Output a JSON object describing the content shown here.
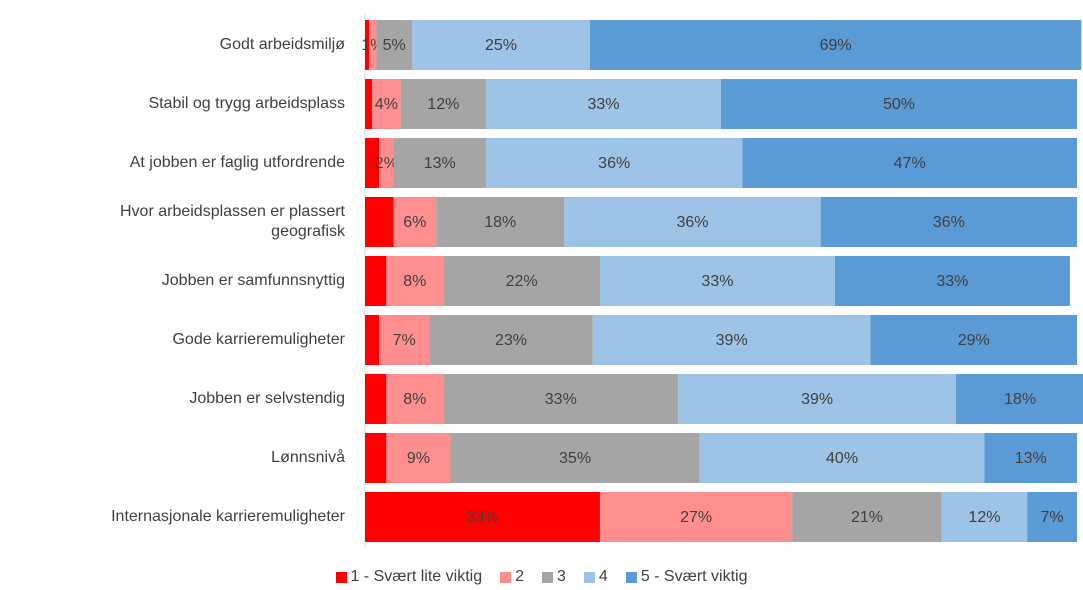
{
  "chart_data": {
    "type": "stacked-bar-horizontal",
    "categories": [
      "Godt arbeidsmiljø",
      "Stabil og trygg arbeidsplass",
      "At jobben er faglig utfordrende",
      "Hvor arbeidsplassen er plassert geografisk",
      "Jobben er samfunnsnyttig",
      "Gode karrieremuligheter",
      "Jobben er selvstendig",
      "Lønnsnivå",
      "Internasjonale karrieremuligheter"
    ],
    "series": [
      {
        "name": "1 - Svært lite viktig",
        "color": "#ff0000",
        "values": [
          0.6,
          1,
          2,
          4,
          3,
          2,
          3,
          3,
          33
        ],
        "value_labels": [
          null,
          null,
          null,
          null,
          null,
          null,
          null,
          null,
          "33%"
        ]
      },
      {
        "name": "2",
        "color": "#ff8f8f",
        "values": [
          1,
          4,
          2,
          6,
          8,
          7,
          8,
          9,
          27
        ],
        "value_labels": [
          "1%",
          "4%",
          "2%",
          "6%",
          "8%",
          "7%",
          "8%",
          "9%",
          "27%"
        ]
      },
      {
        "name": "3",
        "color": "#a5a5a5",
        "values": [
          5,
          12,
          13,
          18,
          22,
          23,
          33,
          35,
          21
        ],
        "value_labels": [
          "5%",
          "12%",
          "13%",
          "18%",
          "22%",
          "23%",
          "33%",
          "35%",
          "21%"
        ]
      },
      {
        "name": "4",
        "color": "#9dc3e6",
        "values": [
          25,
          33,
          36,
          36,
          33,
          39,
          39,
          40,
          12
        ],
        "value_labels": [
          "25%",
          "33%",
          "36%",
          "36%",
          "33%",
          "39%",
          "39%",
          "40%",
          "12%"
        ]
      },
      {
        "name": "5 - Svært viktig",
        "color": "#5b9bd5",
        "values": [
          69,
          50,
          47,
          36,
          33,
          29,
          18,
          13,
          7
        ],
        "value_labels": [
          "69%",
          "50%",
          "47%",
          "36%",
          "33%",
          "29%",
          "18%",
          "13%",
          "7%"
        ]
      }
    ],
    "legend": "bottom"
  }
}
